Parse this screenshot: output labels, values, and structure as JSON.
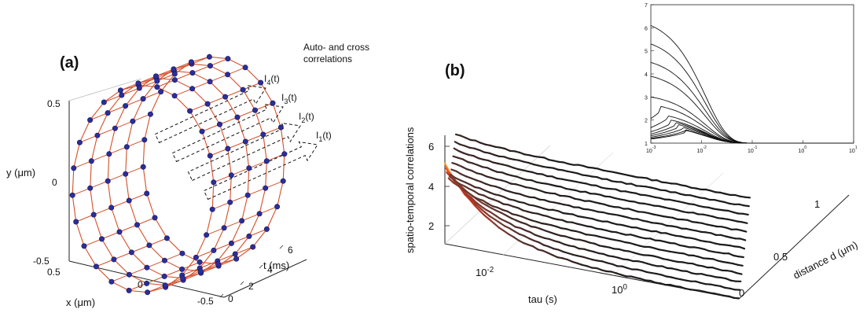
{
  "chart_data": [
    {
      "type": "line",
      "panel_label": "(a)",
      "projection": "3d",
      "annotation": [
        "Auto- and cross",
        "correlations"
      ],
      "intensity_labels": [
        {
          "base": "I",
          "sub": "4",
          "suffix": "(t)"
        },
        {
          "base": "I",
          "sub": "3",
          "suffix": "(t)"
        },
        {
          "base": "I",
          "sub": "2",
          "suffix": "(t)"
        },
        {
          "base": "I",
          "sub": "1",
          "suffix": "(t)"
        }
      ],
      "axes": {
        "x": {
          "label": "x (μm)",
          "ticks": [
            "0.5",
            "0",
            "-0.5"
          ],
          "range": [
            -0.5,
            0.5
          ]
        },
        "y": {
          "label": "y (μm)",
          "ticks": [
            "0.5",
            "0",
            "-0.5"
          ],
          "range": [
            -0.5,
            0.5
          ]
        },
        "t": {
          "label": "t (ms)",
          "ticks": [
            "0",
            "2",
            "4",
            "6"
          ],
          "range": [
            0,
            6
          ]
        }
      },
      "rings": {
        "t_values": [
          0,
          1.5,
          3,
          4.5,
          6
        ],
        "radius": 0.5,
        "points_per_ring": 24
      },
      "colors": {
        "line": "#d4502a",
        "marker": "#2b2e99",
        "marker_edge": "#15185e"
      }
    },
    {
      "type": "line",
      "panel_label": "(b)",
      "projection": "3d-waterfall",
      "axes": {
        "x": {
          "label": "tau (s)",
          "scale": "log",
          "ticks": [
            {
              "base": "10",
              "exp": "-2"
            },
            {
              "base": "10",
              "exp": "0"
            }
          ]
        },
        "y": {
          "label": "distance d (μm)",
          "ticks": [
            "0",
            "0.5",
            "1"
          ],
          "range": [
            0,
            1.2
          ]
        },
        "z": {
          "label": "spatio-temporal correlations",
          "ticks": [
            "2",
            "4",
            "6"
          ],
          "range": [
            1,
            7
          ]
        }
      },
      "distances": [
        0.0,
        0.1,
        0.2,
        0.3,
        0.4,
        0.5,
        0.6,
        0.7,
        0.8,
        0.9,
        1.0,
        1.1,
        1.2
      ],
      "colormap": [
        "#f5b731",
        "#e8441c",
        "#b53622",
        "#6b3a33",
        "#1a1a1a"
      ]
    },
    {
      "type": "line",
      "panel_label": "",
      "role": "inset",
      "x_scale": "log",
      "xlim": [
        0.001,
        10
      ],
      "ylim": [
        1,
        7
      ],
      "x_ticks": [
        {
          "base": "10",
          "exp": "-3"
        },
        {
          "base": "10",
          "exp": "-2"
        },
        {
          "base": "10",
          "exp": "-1"
        },
        {
          "base": "10",
          "exp": "0"
        },
        {
          "base": "10",
          "exp": "1"
        }
      ],
      "y_ticks": [
        "1",
        "2",
        "3",
        "4",
        "5",
        "6",
        "7"
      ],
      "series_peaks_at_1e-3": [
        6.1,
        5.3,
        4.5,
        3.9,
        3.0,
        2.6,
        2.2,
        2.0,
        1.9,
        1.8,
        1.7,
        1.6,
        1.55
      ],
      "series_peak_tau": [
        0.001,
        0.001,
        0.001,
        0.001,
        0.001,
        0.0015,
        0.002,
        0.0025,
        0.003,
        0.0035,
        0.004,
        0.0045,
        0.005
      ]
    }
  ]
}
